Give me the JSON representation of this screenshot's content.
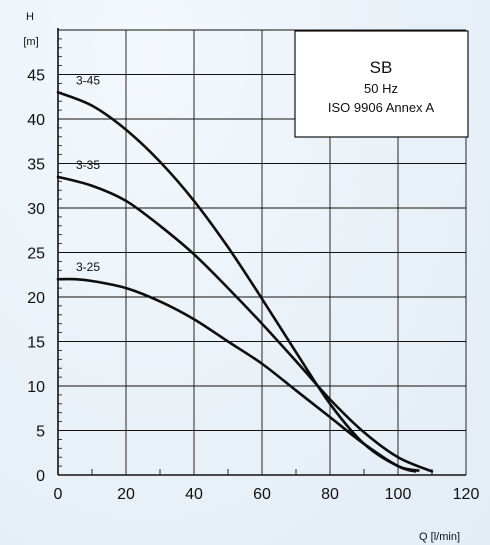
{
  "chart_data": {
    "type": "line",
    "xlabel": "Q [l/min]",
    "ylabel_symbol": "H",
    "ylabel_unit": "[m]",
    "xlim": [
      0,
      120
    ],
    "ylim": [
      0,
      50
    ],
    "xticks": [
      0,
      20,
      40,
      60,
      80,
      100,
      120
    ],
    "yticks": [
      0,
      5,
      10,
      15,
      20,
      25,
      30,
      35,
      40,
      45
    ],
    "grid": true,
    "info_box": {
      "title": "SB",
      "line1": "50 Hz",
      "line2": "ISO 9906 Annex A",
      "placement": "top-right"
    },
    "series": [
      {
        "name": "3-45",
        "x": [
          0,
          10,
          20,
          30,
          40,
          50,
          60,
          70,
          80,
          90,
          100,
          106
        ],
        "values": [
          43,
          41.5,
          38.8,
          35.2,
          30.8,
          25.6,
          19.8,
          13.8,
          8.0,
          3.5,
          1.0,
          0.5
        ]
      },
      {
        "name": "3-35",
        "x": [
          0,
          10,
          20,
          30,
          40,
          50,
          60,
          70,
          80,
          90,
          100,
          110
        ],
        "values": [
          33.5,
          32.5,
          30.8,
          28.0,
          24.8,
          21.0,
          17.0,
          12.8,
          8.5,
          4.8,
          2.0,
          0.4
        ]
      },
      {
        "name": "3-25",
        "x": [
          0,
          5,
          10,
          20,
          30,
          40,
          50,
          60,
          70,
          80,
          90,
          100,
          105
        ],
        "values": [
          22,
          22,
          21.8,
          21.0,
          19.5,
          17.5,
          15.0,
          12.5,
          9.5,
          6.5,
          3.5,
          1.0,
          0.4
        ]
      }
    ]
  }
}
